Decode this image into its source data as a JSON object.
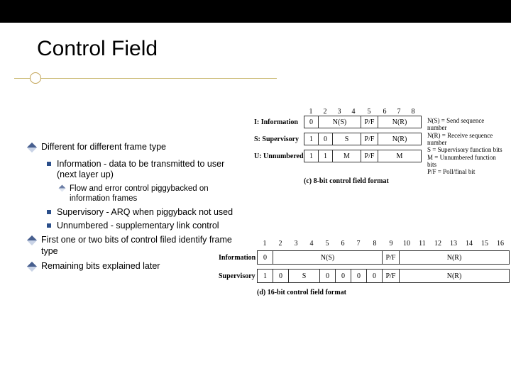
{
  "title": "Control Field",
  "bullets": {
    "b1": "Different for different frame type",
    "b1a": "Information - data to be transmitted to user (next layer up)",
    "b1a1": "Flow and error control piggybacked on information frames",
    "b1b": "Supervisory - ARQ when piggyback not used",
    "b1c": "Unnumbered - supplementary link control",
    "b2": "First one or two bits of control filed identify frame type",
    "b3": "Remaining bits explained later"
  },
  "diag8": {
    "cols": [
      "1",
      "2",
      "3",
      "4",
      "5",
      "6",
      "7",
      "8"
    ],
    "rows": [
      {
        "label": "I: Information",
        "cells": [
          "0",
          "N(S)",
          "P/F",
          "N(R)"
        ],
        "widths": [
          20,
          60,
          24,
          60
        ]
      },
      {
        "label": "S: Supervisory",
        "cells": [
          "1",
          "0",
          "S",
          "P/F",
          "N(R)"
        ],
        "widths": [
          20,
          20,
          40,
          24,
          60
        ]
      },
      {
        "label": "U: Unnumbered",
        "cells": [
          "1",
          "1",
          "M",
          "P/F",
          "M"
        ],
        "widths": [
          20,
          20,
          40,
          24,
          60
        ]
      }
    ],
    "legend": [
      "N(S) = Send sequence number",
      "N(R) = Receive sequence number",
      "S = Supervisory function bits",
      "M = Unnumbered function bits",
      "P/F = Poll/final bit"
    ],
    "caption": "(c) 8-bit control field format"
  },
  "diag16": {
    "cols": [
      "1",
      "2",
      "3",
      "4",
      "5",
      "6",
      "7",
      "8",
      "9",
      "10",
      "11",
      "12",
      "13",
      "14",
      "15",
      "16"
    ],
    "rows": [
      {
        "label": "Information",
        "cells": [
          "0",
          "N(S)",
          "P/F",
          "N(R)"
        ],
        "widths": [
          22,
          154,
          24,
          154
        ]
      },
      {
        "label": "Supervisory",
        "cells": [
          "1",
          "0",
          "S",
          "0",
          "0",
          "0",
          "0",
          "P/F",
          "N(R)"
        ],
        "widths": [
          22,
          22,
          44,
          22,
          22,
          22,
          22,
          24,
          154
        ]
      }
    ],
    "caption": "(d) 16-bit control field format"
  },
  "colors": {
    "topbar": "#000000",
    "rule": "#c9b870",
    "diamond_dark": "#475f8f",
    "diamond_light": "#c9d3e6",
    "square": "#2a4e8a",
    "cell_border": "#333333"
  }
}
